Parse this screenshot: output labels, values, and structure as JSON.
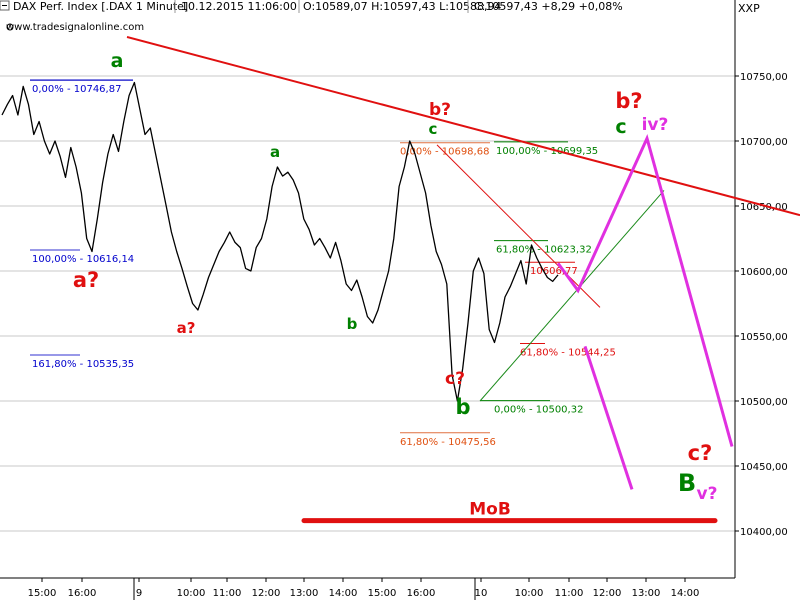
{
  "header": {
    "instrument": "DAX Perf. Index [.DAX  1 Minute]",
    "datetime": "10.12.2015 11:06:00",
    "ohlc": "O:10589,07 H:10597,43 L:10588,94",
    "close_change": "C:10597,43 +8,29 +0,08%",
    "axis_tag": "XXP",
    "watermark": "www.tradesignalonline.com",
    "up_color": "#008000"
  },
  "chart_data": {
    "type": "line",
    "title": "DAX Perf. Index [.DAX  1 Minute]",
    "xlabel": "",
    "ylabel": "",
    "ylim": [
      10358,
      10788
    ],
    "y_ticks": [
      {
        "value": 10750,
        "label": "10750,00"
      },
      {
        "value": 10700,
        "label": "10700,00"
      },
      {
        "value": 10650,
        "label": "10650,00"
      },
      {
        "value": 10600,
        "label": "10600,00"
      },
      {
        "value": 10550,
        "label": "10550,00"
      },
      {
        "value": 10500,
        "label": "10500,00"
      },
      {
        "value": 10450,
        "label": "10450,00"
      },
      {
        "value": 10400,
        "label": "10400,00"
      }
    ],
    "x_ticks": [
      "15:00",
      "16:00",
      "9",
      "10:00",
      "11:00",
      "12:00",
      "13:00",
      "14:00",
      "15:00",
      "16:00",
      "10",
      "10:00",
      "11:00",
      "12:00",
      "13:00",
      "14:00"
    ],
    "grid": true,
    "series": [
      {
        "color": "#000000",
        "values": [
          10720,
          10728,
          10735,
          10720,
          10742,
          10728,
          10705,
          10715,
          10700,
          10690,
          10700,
          10688,
          10672,
          10695,
          10680,
          10660,
          10625,
          10615,
          10640,
          10668,
          10690,
          10705,
          10692,
          10715,
          10735,
          10745,
          10725,
          10705,
          10710,
          10690,
          10670,
          10650,
          10630,
          10615,
          10602,
          10588,
          10575,
          10570,
          10582,
          10595,
          10605,
          10615,
          10622,
          10630,
          10622,
          10618,
          10602,
          10600,
          10618,
          10625,
          10640,
          10665,
          10680,
          10673,
          10676,
          10670,
          10660,
          10640,
          10632,
          10620,
          10625,
          10618,
          10610,
          10622,
          10608,
          10590,
          10585,
          10593,
          10580,
          10565,
          10560,
          10570,
          10585,
          10600,
          10625,
          10665,
          10680,
          10700,
          10690,
          10675,
          10660,
          10635,
          10615,
          10605,
          10590,
          10520,
          10500,
          10525,
          10560,
          10600,
          10610,
          10598,
          10555,
          10545,
          10560,
          10580,
          10588,
          10598,
          10608,
          10590,
          10620,
          10610,
          10602,
          10595,
          10592,
          10597
        ]
      }
    ],
    "trendlines": [
      {
        "name": "downtrend-line",
        "color": "#e01010",
        "from": [
          10780,
          127
        ],
        "to": [
          10643,
          800
        ]
      },
      {
        "name": "uptrend-line",
        "color": "#1a8a1a",
        "from": [
          10500,
          480
        ],
        "to": [
          10662,
          664
        ]
      },
      {
        "name": "thin-red-line",
        "color": "#e01010",
        "from": [
          10697,
          437
        ],
        "to": [
          10572,
          600
        ]
      }
    ],
    "forecast_paths": [
      {
        "name": "projection-b-iv-v",
        "color": "#e030e0",
        "points": [
          [
            10606,
            558
          ],
          [
            10585,
            578
          ],
          [
            10702,
            647
          ],
          [
            10465,
            732
          ]
        ]
      },
      {
        "name": "projection-c",
        "color": "#e030e0",
        "points": [
          [
            10542,
            585
          ],
          [
            10432,
            632
          ]
        ]
      }
    ],
    "support_level": {
      "label": "MoB",
      "value": 10408,
      "color": "#e01010"
    },
    "fib_levels": [
      {
        "label": "0,00% - 10746,87",
        "value": 10746.87,
        "color": "#0000cc"
      },
      {
        "label": "100,00% - 10616,14",
        "value": 10616.14,
        "color": "#0000cc"
      },
      {
        "label": "161,80% - 10535,35",
        "value": 10535.35,
        "color": "#0000cc"
      },
      {
        "label": "0,00% - 10698,68",
        "value": 10698.68,
        "color": "#e05010"
      },
      {
        "label": "61,80% - 10475,56",
        "value": 10475.56,
        "color": "#e05010"
      },
      {
        "label": "100,00% - 10699,35",
        "value": 10699.35,
        "color": "#008000"
      },
      {
        "label": "61,80% - 10623,32",
        "value": 10623.32,
        "color": "#008000"
      },
      {
        "label": "0,00% - 10500,32",
        "value": 10500.32,
        "color": "#008000"
      },
      {
        "label": "10606,77",
        "value": 10606.77,
        "color": "#e01010"
      },
      {
        "label": "61,80% - 10544,25",
        "value": 10544.25,
        "color": "#e01010"
      }
    ],
    "wave_labels": [
      {
        "text": "a",
        "color": "#008000"
      },
      {
        "text": "a?",
        "color": "#e01010"
      },
      {
        "text": "a?",
        "color": "#e01010"
      },
      {
        "text": "a",
        "color": "#008000"
      },
      {
        "text": "b",
        "color": "#008000"
      },
      {
        "text": "b?",
        "color": "#e01010"
      },
      {
        "text": "c",
        "color": "#008000"
      },
      {
        "text": "c?",
        "color": "#e01010"
      },
      {
        "text": "b",
        "color": "#008000"
      },
      {
        "text": "b?",
        "color": "#e01010"
      },
      {
        "text": "c",
        "color": "#008000"
      },
      {
        "text": "iv?",
        "color": "#e030e0"
      },
      {
        "text": "c?",
        "color": "#e01010"
      },
      {
        "text": "B",
        "color": "#008000"
      },
      {
        "text": "v?",
        "color": "#e030e0"
      }
    ]
  }
}
